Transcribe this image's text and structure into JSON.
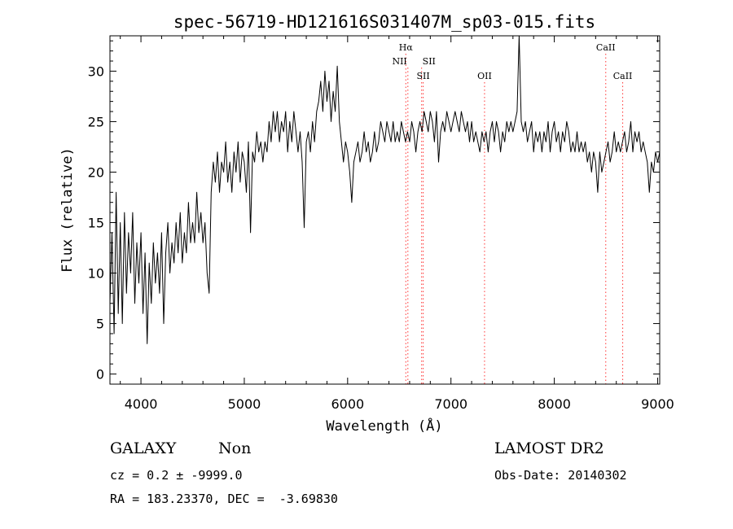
{
  "chart_data": {
    "type": "line",
    "title": "spec-56719-HD121616S031407M_sp03-015.fits",
    "xlabel": "Wavelength (Å)",
    "ylabel": "Flux (relative)",
    "xlim": [
      3700,
      9020
    ],
    "ylim": [
      -1,
      33.5
    ],
    "xticks": [
      4000,
      5000,
      6000,
      7000,
      8000,
      9000
    ],
    "yticks": [
      0,
      5,
      10,
      15,
      20,
      25,
      30
    ],
    "grid": false,
    "series": [
      {
        "points": [
          [
            3700,
            7
          ],
          [
            3720,
            14
          ],
          [
            3740,
            4
          ],
          [
            3760,
            18
          ],
          [
            3780,
            6
          ],
          [
            3800,
            15
          ],
          [
            3820,
            5
          ],
          [
            3840,
            16
          ],
          [
            3860,
            8
          ],
          [
            3880,
            14
          ],
          [
            3900,
            10
          ],
          [
            3920,
            16
          ],
          [
            3940,
            7
          ],
          [
            3960,
            13
          ],
          [
            3980,
            9
          ],
          [
            4000,
            14
          ],
          [
            4020,
            6
          ],
          [
            4040,
            12
          ],
          [
            4060,
            3
          ],
          [
            4080,
            11
          ],
          [
            4100,
            7
          ],
          [
            4120,
            13
          ],
          [
            4140,
            9
          ],
          [
            4160,
            12
          ],
          [
            4180,
            8
          ],
          [
            4200,
            14
          ],
          [
            4220,
            5
          ],
          [
            4240,
            12
          ],
          [
            4260,
            15
          ],
          [
            4280,
            10
          ],
          [
            4300,
            13
          ],
          [
            4320,
            11
          ],
          [
            4340,
            15
          ],
          [
            4360,
            12
          ],
          [
            4380,
            16
          ],
          [
            4400,
            11
          ],
          [
            4420,
            14
          ],
          [
            4440,
            12
          ],
          [
            4460,
            17
          ],
          [
            4480,
            13
          ],
          [
            4500,
            15
          ],
          [
            4520,
            13
          ],
          [
            4540,
            18
          ],
          [
            4560,
            14
          ],
          [
            4580,
            16
          ],
          [
            4600,
            13
          ],
          [
            4620,
            15
          ],
          [
            4640,
            10
          ],
          [
            4660,
            8
          ],
          [
            4680,
            18
          ],
          [
            4700,
            21
          ],
          [
            4720,
            19
          ],
          [
            4740,
            22
          ],
          [
            4760,
            18
          ],
          [
            4780,
            21
          ],
          [
            4800,
            20
          ],
          [
            4820,
            23
          ],
          [
            4840,
            19
          ],
          [
            4860,
            21
          ],
          [
            4880,
            18
          ],
          [
            4900,
            22
          ],
          [
            4920,
            20
          ],
          [
            4940,
            23
          ],
          [
            4960,
            19
          ],
          [
            4980,
            22
          ],
          [
            5000,
            21
          ],
          [
            5020,
            18
          ],
          [
            5040,
            23
          ],
          [
            5060,
            14
          ],
          [
            5080,
            22
          ],
          [
            5100,
            21
          ],
          [
            5120,
            24
          ],
          [
            5140,
            22
          ],
          [
            5160,
            23
          ],
          [
            5180,
            21
          ],
          [
            5200,
            23
          ],
          [
            5220,
            22
          ],
          [
            5240,
            25
          ],
          [
            5260,
            23
          ],
          [
            5280,
            26
          ],
          [
            5300,
            24
          ],
          [
            5320,
            26
          ],
          [
            5340,
            23
          ],
          [
            5360,
            25
          ],
          [
            5380,
            24
          ],
          [
            5400,
            26
          ],
          [
            5420,
            22
          ],
          [
            5440,
            25
          ],
          [
            5460,
            23
          ],
          [
            5480,
            26
          ],
          [
            5500,
            24
          ],
          [
            5520,
            22
          ],
          [
            5540,
            24
          ],
          [
            5560,
            21
          ],
          [
            5580,
            14.5
          ],
          [
            5600,
            23
          ],
          [
            5620,
            24
          ],
          [
            5640,
            22
          ],
          [
            5660,
            25
          ],
          [
            5680,
            23
          ],
          [
            5700,
            26
          ],
          [
            5720,
            27
          ],
          [
            5740,
            29
          ],
          [
            5760,
            26
          ],
          [
            5780,
            30
          ],
          [
            5800,
            27
          ],
          [
            5820,
            29
          ],
          [
            5840,
            25
          ],
          [
            5860,
            28
          ],
          [
            5880,
            26
          ],
          [
            5900,
            30.5
          ],
          [
            5920,
            25
          ],
          [
            5940,
            23
          ],
          [
            5960,
            21
          ],
          [
            5980,
            23
          ],
          [
            6000,
            22
          ],
          [
            6020,
            20
          ],
          [
            6040,
            17
          ],
          [
            6060,
            21
          ],
          [
            6080,
            22
          ],
          [
            6100,
            23
          ],
          [
            6120,
            21
          ],
          [
            6140,
            22
          ],
          [
            6160,
            24
          ],
          [
            6180,
            22
          ],
          [
            6200,
            23
          ],
          [
            6220,
            21
          ],
          [
            6240,
            22
          ],
          [
            6260,
            24
          ],
          [
            6280,
            22
          ],
          [
            6300,
            23
          ],
          [
            6320,
            25
          ],
          [
            6340,
            24
          ],
          [
            6360,
            23
          ],
          [
            6380,
            25
          ],
          [
            6400,
            24
          ],
          [
            6420,
            23
          ],
          [
            6440,
            25
          ],
          [
            6460,
            23
          ],
          [
            6480,
            24
          ],
          [
            6500,
            23
          ],
          [
            6520,
            25
          ],
          [
            6540,
            24
          ],
          [
            6560,
            23
          ],
          [
            6580,
            24
          ],
          [
            6600,
            23
          ],
          [
            6620,
            25
          ],
          [
            6640,
            24
          ],
          [
            6660,
            22
          ],
          [
            6680,
            24
          ],
          [
            6700,
            25
          ],
          [
            6720,
            24
          ],
          [
            6740,
            26
          ],
          [
            6760,
            25
          ],
          [
            6780,
            24
          ],
          [
            6800,
            26
          ],
          [
            6820,
            25
          ],
          [
            6840,
            23
          ],
          [
            6860,
            26
          ],
          [
            6880,
            21
          ],
          [
            6900,
            24
          ],
          [
            6920,
            25
          ],
          [
            6940,
            24
          ],
          [
            6960,
            26
          ],
          [
            6980,
            25
          ],
          [
            7000,
            24
          ],
          [
            7020,
            25
          ],
          [
            7040,
            26
          ],
          [
            7060,
            25
          ],
          [
            7080,
            24
          ],
          [
            7100,
            26
          ],
          [
            7120,
            25
          ],
          [
            7140,
            24
          ],
          [
            7160,
            25
          ],
          [
            7180,
            23
          ],
          [
            7200,
            25
          ],
          [
            7220,
            23
          ],
          [
            7240,
            24
          ],
          [
            7260,
            23
          ],
          [
            7280,
            22
          ],
          [
            7300,
            24
          ],
          [
            7320,
            23
          ],
          [
            7340,
            24
          ],
          [
            7360,
            22
          ],
          [
            7380,
            24
          ],
          [
            7400,
            25
          ],
          [
            7420,
            23
          ],
          [
            7440,
            25
          ],
          [
            7460,
            24
          ],
          [
            7480,
            22
          ],
          [
            7500,
            24
          ],
          [
            7520,
            23
          ],
          [
            7540,
            25
          ],
          [
            7560,
            24
          ],
          [
            7580,
            25
          ],
          [
            7600,
            24
          ],
          [
            7620,
            25
          ],
          [
            7640,
            26
          ],
          [
            7660,
            33.5
          ],
          [
            7680,
            25
          ],
          [
            7700,
            24
          ],
          [
            7720,
            25
          ],
          [
            7740,
            23
          ],
          [
            7760,
            24
          ],
          [
            7780,
            25
          ],
          [
            7800,
            22
          ],
          [
            7820,
            24
          ],
          [
            7840,
            23
          ],
          [
            7860,
            24
          ],
          [
            7880,
            22
          ],
          [
            7900,
            24
          ],
          [
            7920,
            23
          ],
          [
            7940,
            25
          ],
          [
            7960,
            22
          ],
          [
            7980,
            24
          ],
          [
            8000,
            25
          ],
          [
            8020,
            23
          ],
          [
            8040,
            24
          ],
          [
            8060,
            22
          ],
          [
            8080,
            24
          ],
          [
            8100,
            23
          ],
          [
            8120,
            25
          ],
          [
            8140,
            24
          ],
          [
            8160,
            22
          ],
          [
            8180,
            23
          ],
          [
            8200,
            22
          ],
          [
            8220,
            24
          ],
          [
            8240,
            22
          ],
          [
            8260,
            23
          ],
          [
            8280,
            22
          ],
          [
            8300,
            23
          ],
          [
            8320,
            21
          ],
          [
            8340,
            22
          ],
          [
            8360,
            20
          ],
          [
            8380,
            22
          ],
          [
            8400,
            21
          ],
          [
            8420,
            18
          ],
          [
            8440,
            22
          ],
          [
            8460,
            20
          ],
          [
            8480,
            21
          ],
          [
            8500,
            22
          ],
          [
            8520,
            23
          ],
          [
            8540,
            21
          ],
          [
            8560,
            22
          ],
          [
            8580,
            24
          ],
          [
            8600,
            22
          ],
          [
            8620,
            23
          ],
          [
            8640,
            22
          ],
          [
            8660,
            23
          ],
          [
            8680,
            24
          ],
          [
            8700,
            22
          ],
          [
            8720,
            23
          ],
          [
            8740,
            25
          ],
          [
            8760,
            22
          ],
          [
            8780,
            24
          ],
          [
            8800,
            23
          ],
          [
            8820,
            24
          ],
          [
            8840,
            22
          ],
          [
            8860,
            23
          ],
          [
            8880,
            22
          ],
          [
            8900,
            21
          ],
          [
            8920,
            18
          ],
          [
            8940,
            21
          ],
          [
            8960,
            20
          ],
          [
            8980,
            22
          ],
          [
            9000,
            21
          ],
          [
            9020,
            22
          ]
        ]
      }
    ],
    "lines": [
      {
        "name": "Hα",
        "wavelength": 6563,
        "row": 0
      },
      {
        "name": "NII",
        "wavelength": 6583,
        "row": 1,
        "anchor": "end"
      },
      {
        "name": "SII",
        "wavelength": 6716,
        "row": 1,
        "anchor": "start"
      },
      {
        "name": "SII",
        "wavelength": 6731,
        "row": 2
      },
      {
        "name": "OII",
        "wavelength": 7325,
        "row": 2
      },
      {
        "name": "CaII",
        "wavelength": 8498,
        "row": 0
      },
      {
        "name": "CaII",
        "wavelength": 8662,
        "row": 2
      }
    ],
    "colors": {
      "spectrum": "#000000",
      "line_marker": "#ff3333",
      "axes": "#000000"
    }
  },
  "info": {
    "class": "GALAXY",
    "subclass": "Non",
    "survey": "LAMOST DR2",
    "cz": "cz = 0.2 ± -9999.0",
    "obs_date": "Obs-Date: 20140302",
    "radec": "RA = 183.23370, DEC =  -3.69830"
  }
}
